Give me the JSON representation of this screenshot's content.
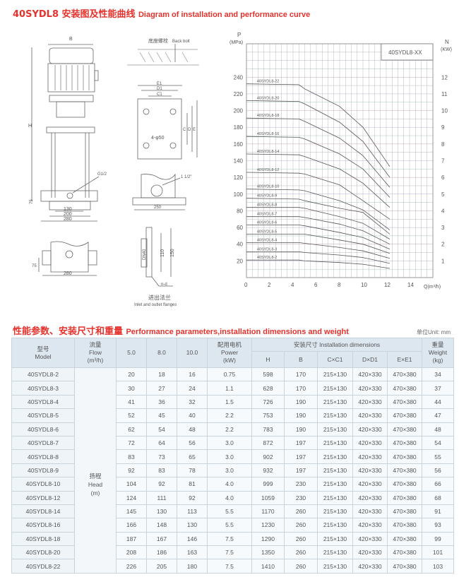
{
  "header": {
    "title_cn": "40SYDL8 安装图及性能曲线",
    "title_en": "Diagram of installation and performance curve"
  },
  "drawings": {
    "pump_front": {
      "B": "B",
      "H": "H",
      "G": "G1/2",
      "d130": "130",
      "d200": "200",
      "d280": "280",
      "d75": "75"
    },
    "pump_bottom": {
      "d75": "75",
      "d280": "280"
    },
    "anchor": {
      "label_cn": "底座螺栓",
      "label_en": "Back bolt",
      "d250": "250"
    },
    "base_plate": {
      "E1": "E1",
      "D1": "D1",
      "C1": "C1",
      "C": "C",
      "D": "D",
      "E": "E",
      "holes": "4-φ50"
    },
    "side_view": {
      "port": "1 1/2\"",
      "d250": "250"
    },
    "flange": {
      "dn": "DN40",
      "d110": "110",
      "d150": "150",
      "nd": "n-d",
      "caption_cn": "进出法兰",
      "caption_en": "Inlet and outlet flanges"
    }
  },
  "chart_data": {
    "type": "line",
    "legend_box": "40SYDL8-XX",
    "ylabel": "P",
    "yunit": "(MPa)",
    "y2label": "N",
    "y2unit": "(KW)",
    "xlabel": "Q(m³/h)",
    "xlim": [
      0,
      16
    ],
    "ylim": [
      0,
      280
    ],
    "y2lim": [
      0,
      14
    ],
    "xticks": [
      0,
      2,
      4,
      6,
      8,
      10,
      12,
      14
    ],
    "yticks": [
      20,
      40,
      60,
      80,
      100,
      120,
      140,
      160,
      180,
      200,
      220,
      240
    ],
    "y2ticks": [
      1,
      2,
      3,
      4,
      5,
      6,
      7,
      8,
      9,
      10,
      11,
      12
    ],
    "grid": true,
    "series": [
      {
        "name": "40SYDL8-22",
        "x": [
          0,
          4.5,
          5,
          8,
          10,
          12.3
        ],
        "y": [
          232,
          231,
          226,
          205,
          180,
          133
        ]
      },
      {
        "name": "40SYDL8-20",
        "x": [
          0,
          4.5,
          5,
          8,
          10,
          12.3
        ],
        "y": [
          212,
          211,
          208,
          186,
          163,
          120
        ]
      },
      {
        "name": "40SYDL8-18",
        "x": [
          0,
          4.5,
          5,
          8,
          10,
          12.3
        ],
        "y": [
          191,
          190,
          187,
          167,
          146,
          108
        ]
      },
      {
        "name": "40SYDL8-16",
        "x": [
          0,
          4.5,
          5,
          8,
          10,
          12.3
        ],
        "y": [
          169,
          168,
          166,
          148,
          130,
          96
        ]
      },
      {
        "name": "40SYDL8-14",
        "x": [
          0,
          4.5,
          5,
          8,
          10,
          12.3
        ],
        "y": [
          148,
          147,
          145,
          130,
          113,
          84
        ]
      },
      {
        "name": "40SYDL8-12",
        "x": [
          0,
          4.5,
          5,
          8,
          10,
          12.3
        ],
        "y": [
          126,
          125,
          124,
          111,
          92,
          70
        ]
      },
      {
        "name": "40SYDL8-10",
        "x": [
          0,
          4.5,
          5,
          8,
          10,
          12.3
        ],
        "y": [
          106,
          105,
          104,
          92,
          81,
          57
        ]
      },
      {
        "name": "40SYDL8-9",
        "x": [
          0,
          4.5,
          5,
          8,
          10,
          12.3
        ],
        "y": [
          95,
          94,
          92,
          83,
          78,
          52
        ]
      },
      {
        "name": "40SYDL8-8",
        "x": [
          0,
          4.5,
          5,
          8,
          10,
          12.3
        ],
        "y": [
          84,
          84,
          83,
          73,
          65,
          46
        ]
      },
      {
        "name": "40SYDL8-7",
        "x": [
          0,
          4.5,
          5,
          8,
          10,
          12.3
        ],
        "y": [
          73,
          73,
          72,
          64,
          56,
          40
        ]
      },
      {
        "name": "40SYDL8-6",
        "x": [
          0,
          4.5,
          5,
          8,
          10,
          12.3
        ],
        "y": [
          63,
          63,
          62,
          54,
          48,
          34
        ]
      },
      {
        "name": "40SYDL8-5",
        "x": [
          0,
          4.5,
          5,
          8,
          10,
          12.3
        ],
        "y": [
          52,
          52,
          52,
          45,
          40,
          29
        ]
      },
      {
        "name": "40SYDL8-4",
        "x": [
          0,
          4.5,
          5,
          8,
          10,
          12.3
        ],
        "y": [
          42,
          42,
          41,
          36,
          32,
          23
        ]
      },
      {
        "name": "40SYDL8-3",
        "x": [
          0,
          4.5,
          5,
          8,
          10,
          12.3
        ],
        "y": [
          31,
          31,
          30,
          27,
          24,
          17
        ]
      },
      {
        "name": "40SYDL8-2",
        "x": [
          0,
          4.5,
          5,
          8,
          10,
          12.3
        ],
        "y": [
          21,
          21,
          20,
          18,
          16,
          11
        ]
      }
    ]
  },
  "table_section": {
    "title_cn": "性能参数、安装尺寸和重量",
    "title_en": "Performance parameters,installation dimensions and weight",
    "unit": "单位Unit: mm"
  },
  "table": {
    "headers": {
      "model_cn": "型号",
      "model_en": "Model",
      "flow_cn": "流量",
      "flow_en": "Flow",
      "flow_unit": "(m³/h)",
      "q1": "5.0",
      "q2": "8.0",
      "q3": "10.0",
      "power_cn": "配用电机",
      "power_en": "Power",
      "power_unit": "(kW)",
      "install": "安装尺寸 Installation dimensions",
      "H": "H",
      "B": "B",
      "CC1": "C×C1",
      "DD1": "D×D1",
      "EE1": "E×E1",
      "weight_cn": "重量",
      "weight_en": "Weight",
      "weight_unit": "(kg)"
    },
    "head_label": {
      "cn": "扬程",
      "en": "Head",
      "unit": "(m)"
    },
    "rows": [
      [
        "40SYDL8-2",
        "20",
        "18",
        "16",
        "0.75",
        "598",
        "170",
        "215×130",
        "420×330",
        "470×380",
        "34"
      ],
      [
        "40SYDL8-3",
        "30",
        "27",
        "24",
        "1.1",
        "628",
        "170",
        "215×130",
        "420×330",
        "470×380",
        "37"
      ],
      [
        "40SYDL8-4",
        "41",
        "36",
        "32",
        "1.5",
        "726",
        "190",
        "215×130",
        "420×330",
        "470×380",
        "44"
      ],
      [
        "40SYDL8-5",
        "52",
        "45",
        "40",
        "2.2",
        "753",
        "190",
        "215×130",
        "420×330",
        "470×380",
        "47"
      ],
      [
        "40SYDL8-6",
        "62",
        "54",
        "48",
        "2.2",
        "783",
        "190",
        "215×130",
        "420×330",
        "470×380",
        "48"
      ],
      [
        "40SYDL8-7",
        "72",
        "64",
        "56",
        "3.0",
        "872",
        "197",
        "215×130",
        "420×330",
        "470×380",
        "54"
      ],
      [
        "40SYDL8-8",
        "83",
        "73",
        "65",
        "3.0",
        "902",
        "197",
        "215×130",
        "420×330",
        "470×380",
        "55"
      ],
      [
        "40SYDL8-9",
        "92",
        "83",
        "78",
        "3.0",
        "932",
        "197",
        "215×130",
        "420×330",
        "470×380",
        "56"
      ],
      [
        "40SYDL8-10",
        "104",
        "92",
        "81",
        "4.0",
        "999",
        "230",
        "215×130",
        "420×330",
        "470×380",
        "66"
      ],
      [
        "40SYDL8-12",
        "124",
        "111",
        "92",
        "4.0",
        "1059",
        "230",
        "215×130",
        "420×330",
        "470×380",
        "68"
      ],
      [
        "40SYDL8-14",
        "145",
        "130",
        "113",
        "5.5",
        "1170",
        "260",
        "215×130",
        "420×330",
        "470×380",
        "91"
      ],
      [
        "40SYDL8-16",
        "166",
        "148",
        "130",
        "5.5",
        "1230",
        "260",
        "215×130",
        "420×330",
        "470×380",
        "93"
      ],
      [
        "40SYDL8-18",
        "187",
        "167",
        "146",
        "7.5",
        "1290",
        "260",
        "215×130",
        "420×330",
        "470×380",
        "99"
      ],
      [
        "40SYDL8-20",
        "208",
        "186",
        "163",
        "7.5",
        "1350",
        "260",
        "215×130",
        "420×330",
        "470×380",
        "101"
      ],
      [
        "40SYDL8-22",
        "226",
        "205",
        "180",
        "7.5",
        "1410",
        "260",
        "215×130",
        "420×330",
        "470×380",
        "103"
      ]
    ]
  },
  "colors": {
    "accent": "#e5322c",
    "table_header": "#dde7f0",
    "grid": "#b7bcc4"
  }
}
